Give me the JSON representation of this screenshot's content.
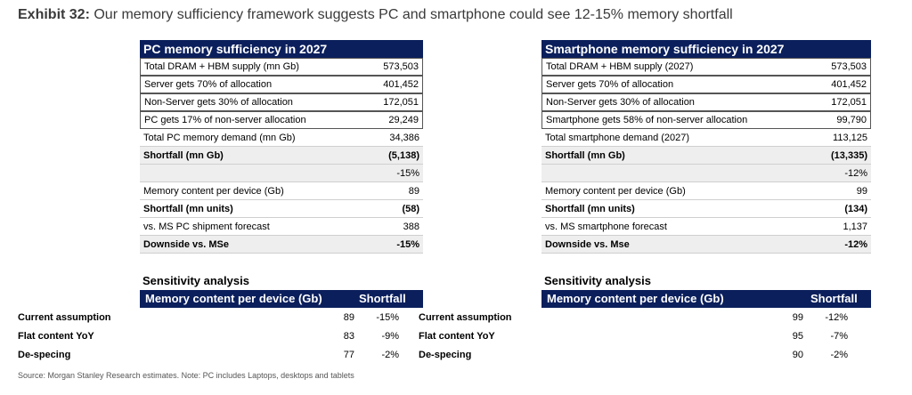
{
  "title": {
    "label": "Exhibit 32:",
    "text": "Our memory sufficiency framework suggests PC and smartphone could see 12-15% memory shortfall"
  },
  "pc": {
    "header": "PC memory sufficiency in 2027",
    "rows": [
      {
        "label": "Total DRAM + HBM supply (mn Gb)",
        "value": "573,503"
      },
      {
        "label": "Server gets 70% of allocation",
        "value": "401,452"
      },
      {
        "label": "Non-Server gets 30% of allocation",
        "value": "172,051"
      },
      {
        "label": "PC gets 17% of non-server allocation",
        "value": "29,249"
      },
      {
        "label": "Total PC memory demand (mn Gb)",
        "value": "34,386"
      },
      {
        "label": "Shortfall (mn Gb)",
        "value": "(5,138)"
      },
      {
        "label": "",
        "value": "-15%"
      },
      {
        "label": "Memory content per device (Gb)",
        "value": "89"
      },
      {
        "label": "Shortfall (mn units)",
        "value": "(58)"
      },
      {
        "label": "vs. MS PC shipment forecast",
        "value": "388"
      },
      {
        "label": "Downside vs. MSe",
        "value": "-15%"
      }
    ]
  },
  "phone": {
    "header": "Smartphone memory sufficiency in 2027",
    "rows": [
      {
        "label": "Total DRAM + HBM supply (2027)",
        "value": "573,503"
      },
      {
        "label": "Server gets 70% of allocation",
        "value": "401,452"
      },
      {
        "label": "Non-Server gets 30% of allocation",
        "value": "172,051"
      },
      {
        "label": "Smartphone gets 58% of non-server allocation",
        "value": "99,790"
      },
      {
        "label": "Total smartphone demand (2027)",
        "value": "113,125"
      },
      {
        "label": "Shortfall (mn Gb)",
        "value": "(13,335)"
      },
      {
        "label": "",
        "value": "-12%"
      },
      {
        "label": "Memory content per device (Gb)",
        "value": "99"
      },
      {
        "label": "Shortfall (mn units)",
        "value": "(134)"
      },
      {
        "label": "vs. MS smartphone forecast",
        "value": "1,137"
      },
      {
        "label": "Downside vs. Mse",
        "value": "-12%"
      }
    ]
  },
  "sens_pc": {
    "title": "Sensitivity analysis",
    "col1": "Memory content per device (Gb)",
    "col2": "Shortfall",
    "rows": [
      {
        "label": "Current assumption",
        "content": "89",
        "shortfall": "-15%"
      },
      {
        "label": "Flat content YoY",
        "content": "83",
        "shortfall": "-9%"
      },
      {
        "label": "De-specing",
        "content": "77",
        "shortfall": "-2%"
      }
    ]
  },
  "sens_phone": {
    "title": "Sensitivity analysis",
    "col1": "Memory content per device (Gb)",
    "col2": "Shortfall",
    "rows": [
      {
        "label": "Current assumption",
        "content": "99",
        "shortfall": "-12%"
      },
      {
        "label": "Flat content YoY",
        "content": "95",
        "shortfall": "-7%"
      },
      {
        "label": "De-specing",
        "content": "90",
        "shortfall": "-2%"
      }
    ]
  },
  "source": "Source: Morgan Stanley Research estimates. Note: PC includes Laptops, desktops and tablets",
  "colors": {
    "header_bg": "#0b1f5c",
    "shade": "#eeeeee"
  }
}
